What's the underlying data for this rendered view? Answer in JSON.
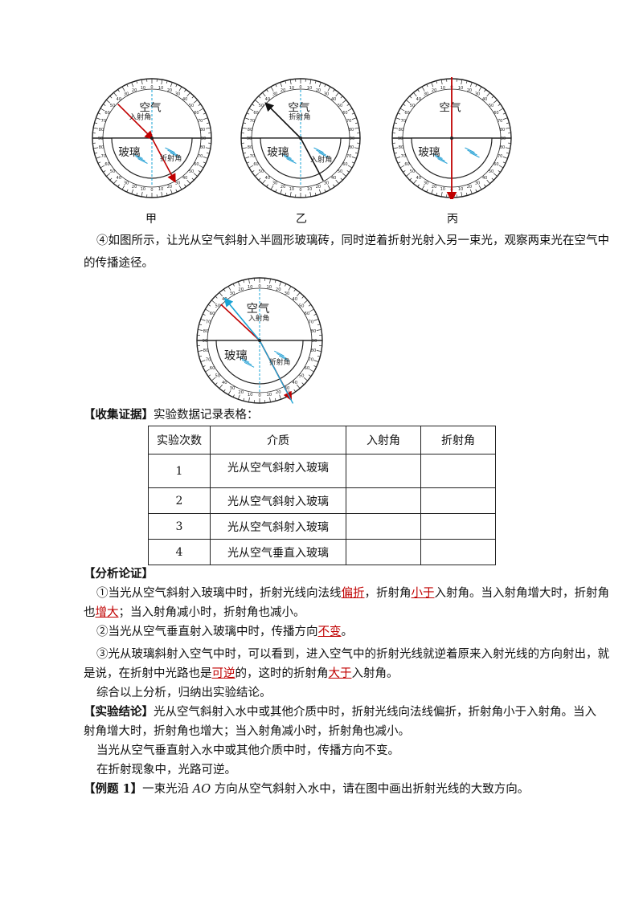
{
  "figures": {
    "medium_top": "空气",
    "medium_bottom": "玻璃",
    "incident_label": "入射角",
    "refracted_label": "折射角",
    "captions": [
      "甲",
      "乙",
      "丙"
    ]
  },
  "step4": {
    "line1": "④如图所示，让光从空气斜射入半圆形玻璃砖，同时逆着折射光射入另一束光，观察两束光在空气中",
    "line2": "的传播途径。"
  },
  "collect": {
    "heading": "【收集证据】",
    "text": "实验数据记录表格："
  },
  "table": {
    "headers": [
      "实验次数",
      "介质",
      "入射角",
      "折射角"
    ],
    "rows": [
      {
        "no": "1",
        "medium": "光从空气斜射入玻璃"
      },
      {
        "no": "2",
        "medium": "光从空气斜射入玻璃"
      },
      {
        "no": "3",
        "medium": "光从空气斜射入玻璃"
      },
      {
        "no": "4",
        "medium": "光从空气垂直入玻璃"
      }
    ]
  },
  "analysis": {
    "heading": "【分析论证】",
    "p1_a": "①当光从空气斜射入玻璃中时，折射光线向法线",
    "p1_ans1": "偏折",
    "p1_b": "，折射角",
    "p1_ans2": "小于",
    "p1_c": "入射角。当入射角增大时，折射角",
    "p1_d": "也",
    "p1_ans3": "增大",
    "p1_e": "；当入射角减小时，折射角也减小。",
    "p2_a": "②当光从空气垂直射入玻璃中时，传播方向",
    "p2_ans": "不变",
    "p2_b": "。",
    "p3_a": "③光从玻璃斜射入空气中时，可以看到，进入空气中的折射光线就逆着原来入射光线的方向射出，就",
    "p3_b": "是说，在折射中光路也是",
    "p3_ans1": "可逆",
    "p3_c": "的，这时的折射角",
    "p3_ans2": "大于",
    "p3_d": "入射角。",
    "summary": "综合以上分析，归纳出实验结论。"
  },
  "conclusion": {
    "heading": "【实验结论】",
    "l1": "光从空气斜射入水中或其他介质中时，折射光线向法线偏折，折射角小于入射角。当入",
    "l2": "射角增大时，折射角也增大；当入射角减小时，折射角也减小。",
    "l3": "当光从空气垂直射入水中或其他介质中时，传播方向不变。",
    "l4": "在折射现象中，光路可逆。"
  },
  "example": {
    "heading": "【例题 1】",
    "text_a": "一束光沿 ",
    "ao": "AO",
    "text_b": " 方向从空气斜射入水中，请在图中画出折射光线的大致方向。"
  }
}
